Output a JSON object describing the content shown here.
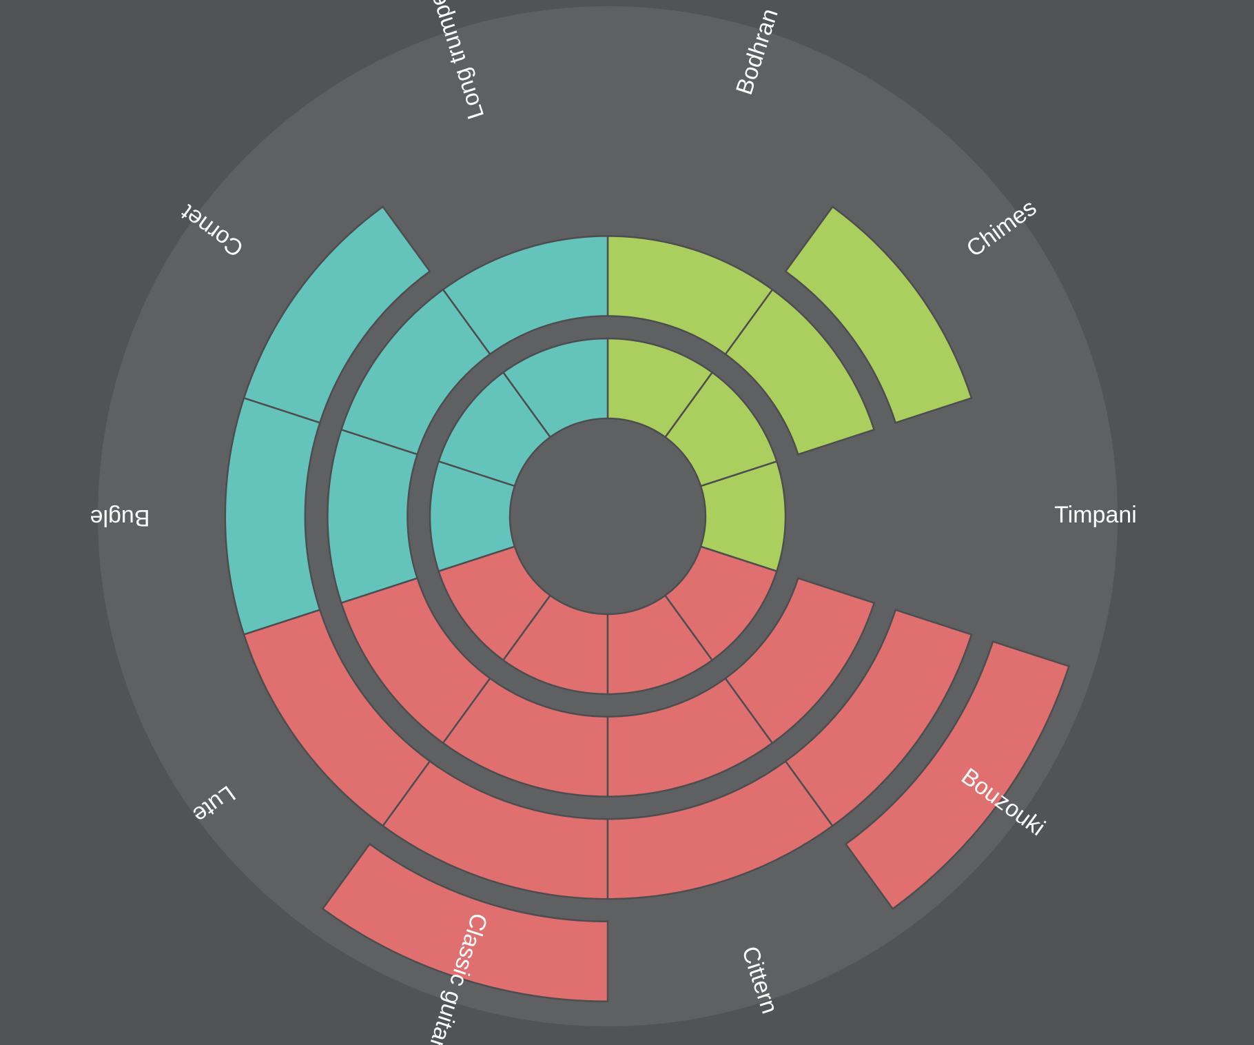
{
  "chart_data": {
    "type": "radial-stacked-blocks",
    "categories": [
      "Timpani",
      "Chimes",
      "Bodhran",
      "Long trumpet",
      "Cornet",
      "Bugle",
      "Lute",
      "Classic guitar",
      "Cittern",
      "Bouzouki"
    ],
    "values": [
      1,
      3,
      2,
      2,
      3,
      3,
      3,
      4,
      3,
      4
    ],
    "colors": [
      "#abcf5e",
      "#abcf5e",
      "#abcf5e",
      "#64c4bc",
      "#64c4bc",
      "#64c4bc",
      "#e07070",
      "#e07070",
      "#e07070",
      "#e07070"
    ]
  }
}
